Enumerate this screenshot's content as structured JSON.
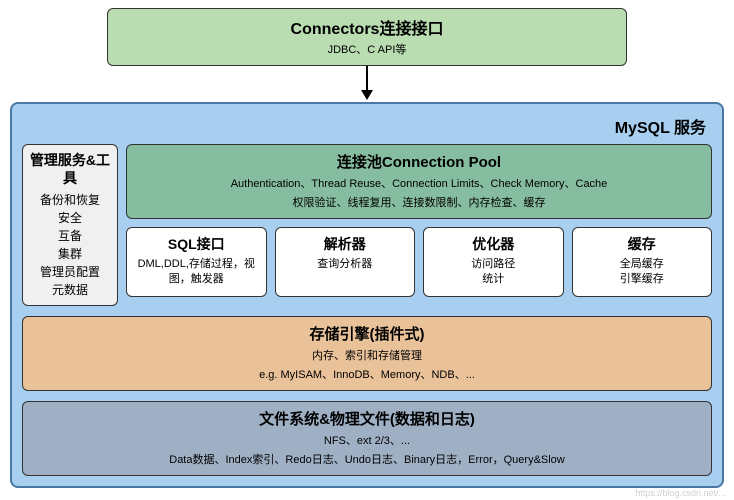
{
  "colors": {
    "connectors_bg": "#b9dcb0",
    "service_bg": "#a8cff0",
    "service_border": "#4a78a5",
    "sidebar_bg": "#f0f0f0",
    "pool_bg": "#86bda0",
    "cell_bg": "#ffffff",
    "storage_bg": "#e9c29a",
    "fs_bg": "#9fb0c5",
    "box_border": "#333333"
  },
  "connectors": {
    "title": "Connectors连接接口",
    "subtitle": "JDBC、C API等"
  },
  "service": {
    "label": "MySQL 服务",
    "sidebar": {
      "heading": "管理服务&工具",
      "items": [
        "备份和恢复",
        "安全",
        "互备",
        "集群",
        "管理员配置",
        "元数据"
      ]
    },
    "pool": {
      "title": "连接池Connection Pool",
      "line1": "Authentication、Thread Reuse、Connection Limits、Check Memory、Cache",
      "line2": "权限验证、线程复用、连接数限制、内存检查、缓存"
    },
    "modules": [
      {
        "title": "SQL接口",
        "desc": "DML,DDL,存储过程，视图，触发器"
      },
      {
        "title": "解析器",
        "desc": "查询分析器"
      },
      {
        "title": "优化器",
        "desc": "访问路径\n统计"
      },
      {
        "title": "缓存",
        "desc": "全局缓存\n引擎缓存"
      }
    ],
    "storage": {
      "title": "存储引擎(插件式)",
      "line1": "内存、索引和存储管理",
      "line2": "e.g. MyISAM、InnoDB、Memory、NDB、..."
    },
    "filesystem": {
      "title": "文件系统&物理文件(数据和日志)",
      "line1": "NFS、ext 2/3、...",
      "line2": "Data数据、Index索引、Redo日志、Undo日志、Binary日志，Error，Query&Slow"
    }
  },
  "watermark": "https://blog.csdn.net/..."
}
